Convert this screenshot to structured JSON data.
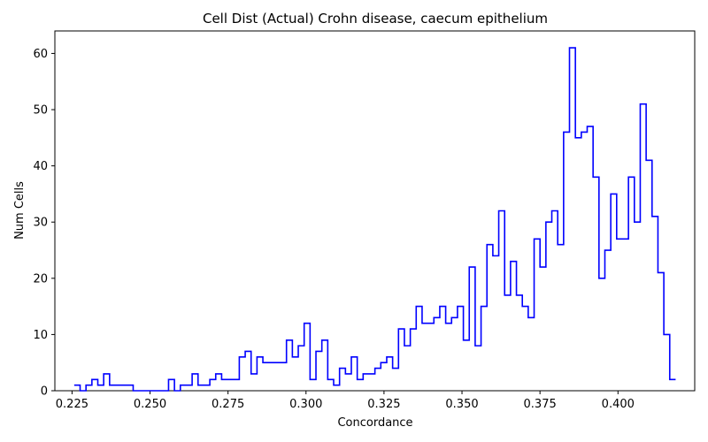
{
  "chart_data": {
    "type": "step",
    "title": "Cell Dist (Actual) Crohn disease, caecum epithelium",
    "xlabel": "Concordance",
    "ylabel": "Num Cells",
    "xlim": [
      0.2195,
      0.4246
    ],
    "ylim": [
      0,
      64
    ],
    "xticks": [
      "0.225",
      "0.250",
      "0.275",
      "0.300",
      "0.325",
      "0.350",
      "0.375",
      "0.400"
    ],
    "xtick_values": [
      0.225,
      0.25,
      0.275,
      0.3,
      0.325,
      0.35,
      0.375,
      0.4
    ],
    "yticks": [
      "0",
      "10",
      "20",
      "30",
      "40",
      "50",
      "60"
    ],
    "ytick_values": [
      0,
      10,
      20,
      30,
      40,
      50,
      60
    ],
    "grid": false,
    "line_color": "#0000ff",
    "bin_start": 0.2257,
    "bin_width": 0.00189,
    "values": [
      1,
      0,
      1,
      2,
      1,
      3,
      1,
      1,
      1,
      1,
      0,
      0,
      0,
      0,
      0,
      0,
      2,
      0,
      1,
      1,
      3,
      1,
      1,
      2,
      3,
      2,
      2,
      2,
      6,
      7,
      3,
      6,
      5,
      5,
      5,
      5,
      9,
      6,
      8,
      12,
      2,
      7,
      9,
      2,
      1,
      4,
      3,
      6,
      2,
      3,
      3,
      4,
      5,
      6,
      4,
      11,
      8,
      11,
      15,
      12,
      12,
      13,
      15,
      12,
      13,
      15,
      9,
      22,
      8,
      15,
      26,
      24,
      32,
      17,
      23,
      17,
      15,
      13,
      27,
      22,
      30,
      32,
      26,
      46,
      61,
      45,
      46,
      47,
      38,
      20,
      25,
      35,
      27,
      27,
      38,
      30,
      51,
      41,
      31,
      21,
      10,
      2
    ]
  }
}
